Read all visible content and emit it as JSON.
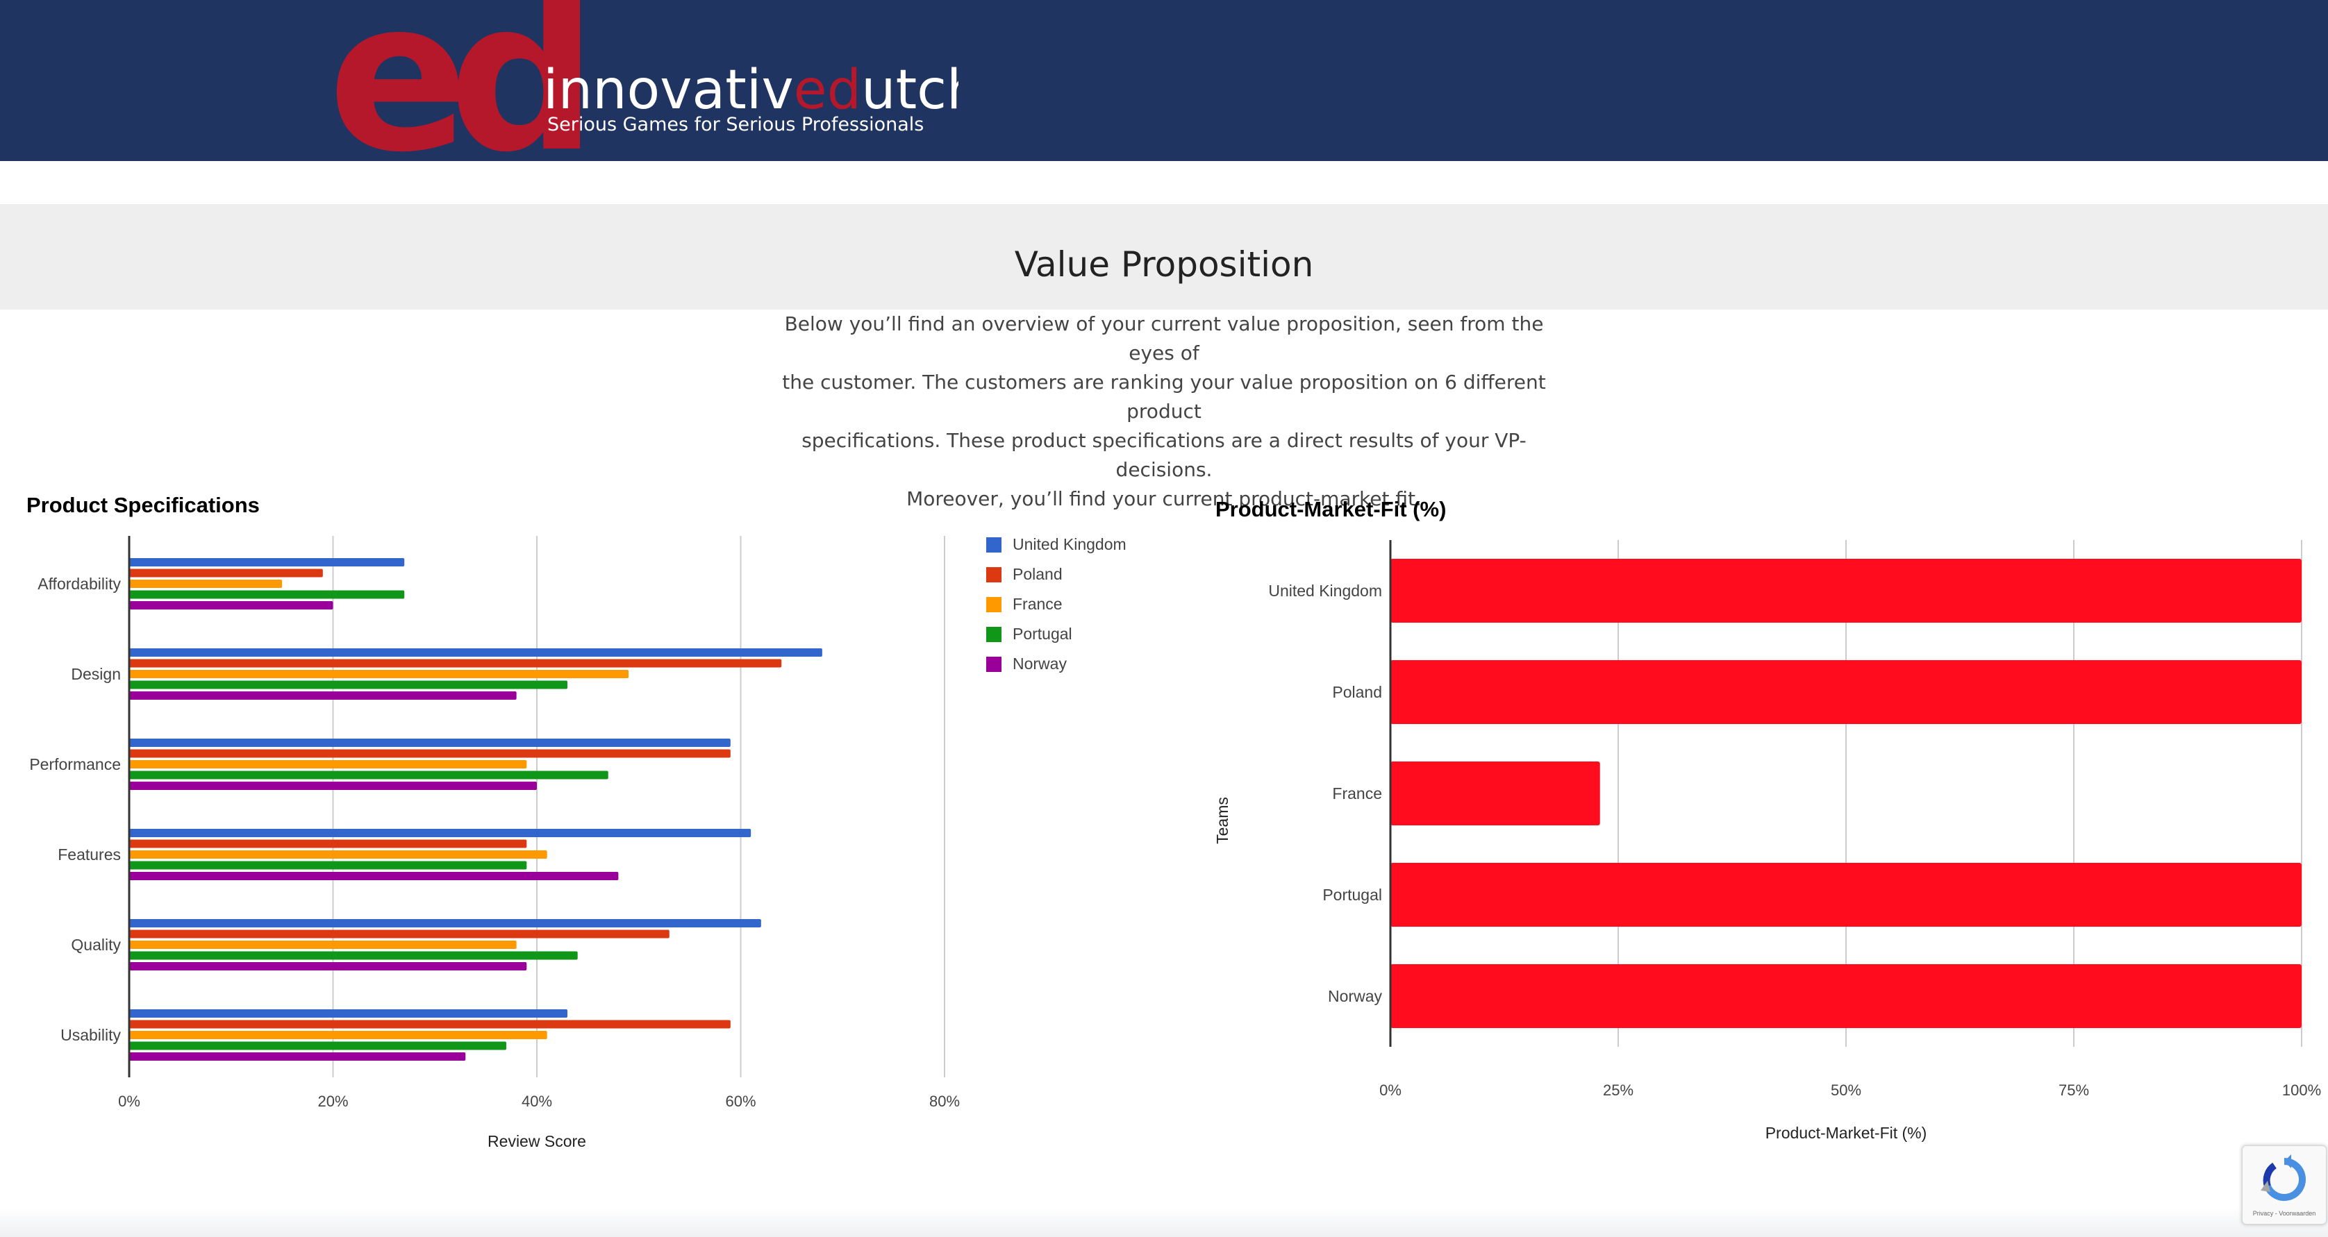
{
  "header": {
    "logo_monogram": "ed",
    "brand_name": "innovativedutch",
    "tagline": "Serious Games for Serious Professionals",
    "background": "#1f3461",
    "brand_red": "#b5182b"
  },
  "page": {
    "title": "Value Proposition",
    "intro_lines": [
      "Below you’ll find an overview of your current value proposition, seen from the eyes of",
      "the customer. The customers are ranking your value proposition on 6 different product",
      "specifications. These product specifications are a direct results of your VP-decisions.",
      "Moreover, you’ll find your current product-market fit."
    ]
  },
  "chart_data": [
    {
      "type": "bar",
      "orientation": "horizontal",
      "title": "Product Specifications",
      "xlabel": "Review Score",
      "ylabel": "",
      "xlim": [
        0,
        80
      ],
      "x_ticks": [
        "0%",
        "20%",
        "40%",
        "60%",
        "80%"
      ],
      "grid": true,
      "legend_position": "right",
      "categories": [
        "Affordability",
        "Design",
        "Performance",
        "Features",
        "Quality",
        "Usability"
      ],
      "series": [
        {
          "name": "United Kingdom",
          "color": "#3366cc",
          "values": [
            27,
            68,
            59,
            61,
            62,
            43
          ]
        },
        {
          "name": "Poland",
          "color": "#dc3912",
          "values": [
            19,
            64,
            59,
            39,
            53,
            59
          ]
        },
        {
          "name": "France",
          "color": "#ff9900",
          "values": [
            15,
            49,
            39,
            41,
            38,
            41
          ]
        },
        {
          "name": "Portugal",
          "color": "#109618",
          "values": [
            27,
            43,
            47,
            39,
            44,
            37
          ]
        },
        {
          "name": "Norway",
          "color": "#990099",
          "values": [
            20,
            38,
            40,
            48,
            39,
            33
          ]
        }
      ]
    },
    {
      "type": "bar",
      "orientation": "horizontal",
      "title": "Product-Market-Fit (%)",
      "xlabel": "Product-Market-Fit (%)",
      "ylabel": "Teams",
      "xlim": [
        0,
        100
      ],
      "x_ticks": [
        "0%",
        "25%",
        "50%",
        "75%",
        "100%"
      ],
      "grid": true,
      "categories": [
        "United Kingdom",
        "Poland",
        "France",
        "Portugal",
        "Norway"
      ],
      "color": "#ff0d1e",
      "values": [
        100,
        100,
        23,
        100,
        100
      ]
    }
  ],
  "recaptcha": {
    "label": "Privacy - Voorwaarden"
  }
}
